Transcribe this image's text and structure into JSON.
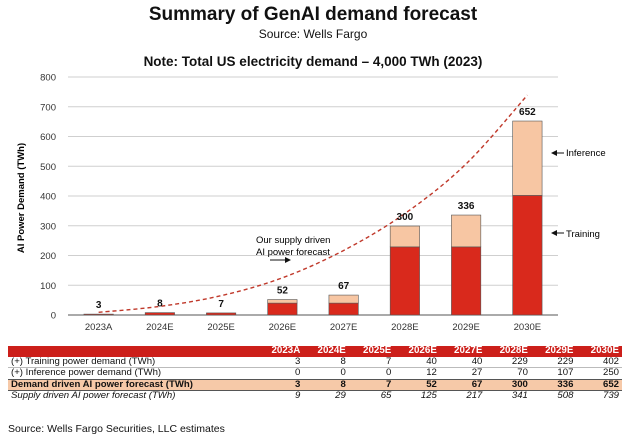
{
  "header": {
    "title": "Summary of GenAI demand forecast",
    "source": "Source: Wells Fargo",
    "note": "Note: Total US electricity demand – 4,000 TWh (2023)"
  },
  "chart_data": {
    "type": "bar",
    "stacked": true,
    "categories": [
      "2023A",
      "2024E",
      "2025E",
      "2026E",
      "2027E",
      "2028E",
      "2029E",
      "2030E"
    ],
    "series": [
      {
        "name": "Training",
        "values": [
          3,
          8,
          7,
          40,
          40,
          229,
          229,
          402
        ],
        "color": "#d9291c"
      },
      {
        "name": "Inference",
        "values": [
          0,
          0,
          0,
          12,
          27,
          70,
          107,
          250
        ],
        "color": "#f7c6a3"
      }
    ],
    "totals": [
      3,
      8,
      7,
      52,
      67,
      300,
      336,
      652
    ],
    "supply_curve": {
      "values": [
        9,
        29,
        65,
        125,
        217,
        341,
        508,
        739
      ],
      "color": "#c0392b",
      "style": "dashed"
    },
    "ylabel": "AI Power Demand (TWh)",
    "ylim": [
      0,
      800
    ],
    "yticks": [
      0,
      100,
      200,
      300,
      400,
      500,
      600,
      700,
      800
    ],
    "gridlines": true,
    "annotations": {
      "inference": "Inference",
      "training": "Training",
      "supply_line1": "Our supply driven",
      "supply_line2": "AI power forecast"
    }
  },
  "table": {
    "columns": [
      "2023A",
      "2024E",
      "2025E",
      "2026E",
      "2027E",
      "2028E",
      "2029E",
      "2030E"
    ],
    "rows": [
      {
        "label": "(+)  Training power demand (TWh)",
        "values": [
          "3",
          "8",
          "7",
          "40",
          "40",
          "229",
          "229",
          "402"
        ]
      },
      {
        "label": "(+)  Inference power demand (TWh)",
        "values": [
          "0",
          "0",
          "0",
          "12",
          "27",
          "70",
          "107",
          "250"
        ]
      },
      {
        "label": "Demand driven AI power forecast (TWh)",
        "values": [
          "3",
          "8",
          "7",
          "52",
          "67",
          "300",
          "336",
          "652"
        ]
      },
      {
        "label": "Supply driven AI power forecast (TWh)",
        "values": [
          "9",
          "29",
          "65",
          "125",
          "217",
          "341",
          "508",
          "739"
        ]
      }
    ]
  },
  "footer": {
    "source": "Source: Wells Fargo Securities, LLC estimates"
  }
}
